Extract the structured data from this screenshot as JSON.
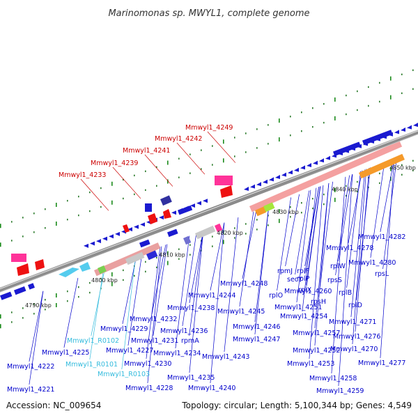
{
  "title": "Marinomonas sp. MWYL1, complete genome",
  "footer": {
    "accession": "Accession: NC_009654",
    "summary": "Topology: circular; Length: 5,100,344 bp; Genes: 4,549"
  },
  "colors": {
    "backbone": "#8c8c8c",
    "label_blue": "#0000cc",
    "label_cyan": "#33bbdd",
    "label_red": "#cc0000",
    "tick_green": "#1a8a1a"
  },
  "ticks": [
    "4790 kbp",
    "4800 kbp",
    "4810 kbp",
    "4820 kbp",
    "4830 kbp",
    "4840 kbp",
    "4850 kbp"
  ],
  "labels": [
    {
      "text": "Mmwyl1_4249",
      "color": "red"
    },
    {
      "text": "Mmwyl1_4242",
      "color": "red"
    },
    {
      "text": "Mmwyl1_4241",
      "color": "red"
    },
    {
      "text": "Mmwyl1_4239",
      "color": "red"
    },
    {
      "text": "Mmwyl1_4233",
      "color": "red"
    },
    {
      "text": "Mmwyl1_4282",
      "color": "blue"
    },
    {
      "text": "Mmwyl1_4278",
      "color": "blue"
    },
    {
      "text": "Mmwyl1_4280",
      "color": "blue"
    },
    {
      "text": "rpsL",
      "color": "blue"
    },
    {
      "text": "rplF",
      "color": "blue"
    },
    {
      "text": "rplW",
      "color": "blue"
    },
    {
      "text": "rpmJ",
      "color": "blue"
    },
    {
      "text": "rplP",
      "color": "blue"
    },
    {
      "text": "secY",
      "color": "blue"
    },
    {
      "text": "rplX",
      "color": "blue"
    },
    {
      "text": "rpsS",
      "color": "blue"
    },
    {
      "text": "Mmwyl1_4248",
      "color": "blue"
    },
    {
      "text": "Mmwyl1_4260",
      "color": "blue"
    },
    {
      "text": "rplB",
      "color": "blue"
    },
    {
      "text": "rplO",
      "color": "blue"
    },
    {
      "text": "rpsH",
      "color": "blue"
    },
    {
      "text": "Mmwyl1_4244",
      "color": "blue"
    },
    {
      "text": "rplD",
      "color": "blue"
    },
    {
      "text": "Mmwyl1_4238",
      "color": "blue"
    },
    {
      "text": "Mmwyl1_4251",
      "color": "blue"
    },
    {
      "text": "Mmwyl1_4245",
      "color": "blue"
    },
    {
      "text": "Mmwyl1_4254",
      "color": "blue"
    },
    {
      "text": "Mmwyl1_4232",
      "color": "blue"
    },
    {
      "text": "Mmwyl1_4271",
      "color": "blue"
    },
    {
      "text": "Mmwyl1_4229",
      "color": "blue"
    },
    {
      "text": "Mmwyl1_4236",
      "color": "blue"
    },
    {
      "text": "Mmwyl1_4246",
      "color": "blue"
    },
    {
      "text": "Mmwyl1_4257",
      "color": "blue"
    },
    {
      "text": "Mmwyl1_R0102",
      "color": "cyan"
    },
    {
      "text": "Mmwyl1_4231",
      "color": "blue"
    },
    {
      "text": "rpmA",
      "color": "blue"
    },
    {
      "text": "Mmwyl1_4247",
      "color": "blue"
    },
    {
      "text": "Mmwyl1_4276",
      "color": "blue"
    },
    {
      "text": "Mmwyl1_4225",
      "color": "blue"
    },
    {
      "text": "Mmwyl1_4227",
      "color": "blue"
    },
    {
      "text": "Mmwyl1_4234",
      "color": "blue"
    },
    {
      "text": "Mmwyl1_4252",
      "color": "blue"
    },
    {
      "text": "Mmwyl1_4270",
      "color": "blue"
    },
    {
      "text": "Mmwyl1_4243",
      "color": "blue"
    },
    {
      "text": "Mmwyl1_R0101",
      "color": "cyan"
    },
    {
      "text": "Mmwyl1_4230",
      "color": "blue"
    },
    {
      "text": "Mmwyl1_4253",
      "color": "blue"
    },
    {
      "text": "Mmwyl1_4277",
      "color": "blue"
    },
    {
      "text": "Mmwyl1_4222",
      "color": "blue"
    },
    {
      "text": "Mmwyl1_R0103",
      "color": "cyan"
    },
    {
      "text": "Mmwyl1_4235",
      "color": "blue"
    },
    {
      "text": "Mmwyl1_4258",
      "color": "blue"
    },
    {
      "text": "Mmwyl1_4228",
      "color": "blue"
    },
    {
      "text": "Mmwyl1_4240",
      "color": "blue"
    },
    {
      "text": "Mmwyl1_4259",
      "color": "blue"
    },
    {
      "text": "Mmwyl1_4221",
      "color": "blue"
    }
  ]
}
